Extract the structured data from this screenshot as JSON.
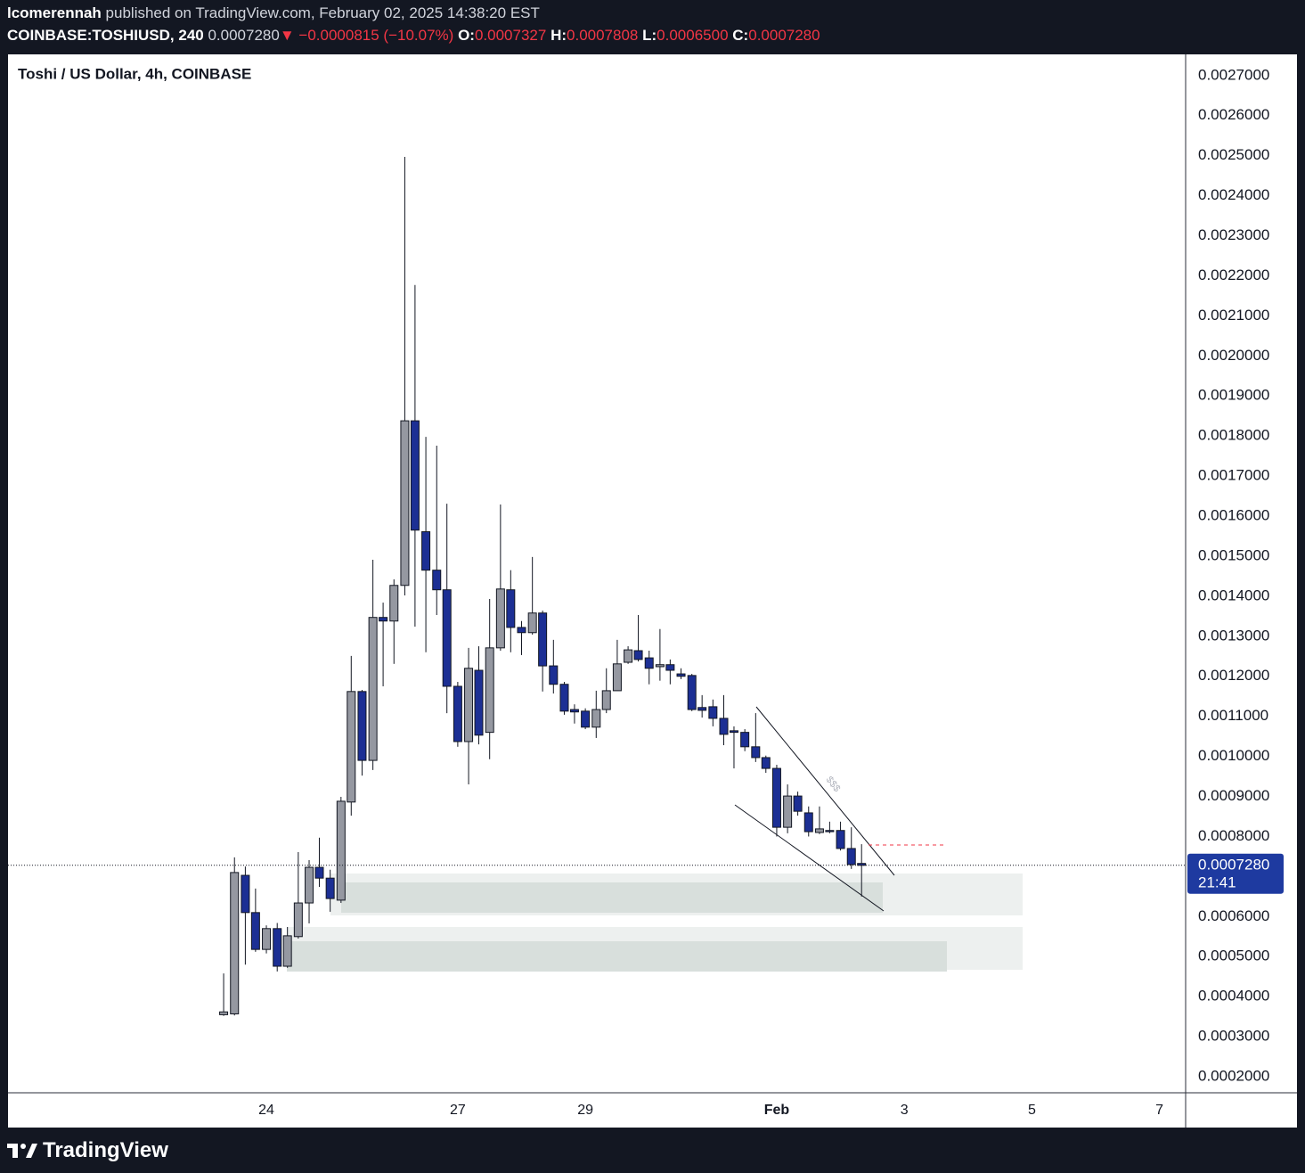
{
  "header": {
    "author": "lcomerennah",
    "published": "published on TradingView.com, February 02, 2025 14:38:20 EST",
    "symbol": "COINBASE:TOSHIUSD, 240",
    "last": "0.0007280",
    "arrow": "▼",
    "change": "−0.0000815 (−10.07%)",
    "o_label": "O:",
    "o": "0.0007327",
    "h_label": "H:",
    "h": "0.0007808",
    "l_label": "L:",
    "l": "0.0006500",
    "c_label": "C:",
    "c": "0.0007280"
  },
  "footer": {
    "brand": "TradingView"
  },
  "chart_data": {
    "type": "candlestick",
    "title": "Toshi / US Dollar, 4h, COINBASE",
    "x": [
      23.33,
      23.5,
      23.67,
      23.83,
      24,
      24.17,
      24.33,
      24.5,
      24.67,
      24.83,
      25,
      25.17,
      25.33,
      25.5,
      25.67,
      25.83,
      26,
      26.17,
      26.33,
      26.5,
      26.67,
      26.83,
      27,
      27.17,
      27.33,
      27.5,
      27.67,
      27.83,
      28,
      28.17,
      28.33,
      28.5,
      28.67,
      28.83,
      29,
      29.17,
      29.33,
      29.5,
      29.67,
      29.83,
      30,
      30.17,
      30.33,
      30.5,
      30.67,
      30.83,
      31,
      31.17,
      31.33,
      31.5,
      31.67,
      31.83,
      32,
      32.17,
      32.33,
      32.5,
      32.67,
      32.83,
      33,
      33.17,
      33.33
    ],
    "open": [
      0.000355,
      0.000357,
      0.000703,
      0.00061,
      0.000518,
      0.00057,
      0.000476,
      0.00055,
      0.000634,
      0.000723,
      0.000696,
      0.000641,
      0.000886,
      0.001162,
      0.00099,
      0.001347,
      0.001338,
      0.001427,
      0.001838,
      0.001561,
      0.001465,
      0.001416,
      0.001175,
      0.001037,
      0.001215,
      0.00106,
      0.001271,
      0.001416,
      0.001322,
      0.001309,
      0.001358,
      0.001226,
      0.00118,
      0.001117,
      0.001113,
      0.001073,
      0.001117,
      0.001164,
      0.001235,
      0.001264,
      0.001246,
      0.001224,
      0.001229,
      0.001206,
      0.001202,
      0.001122,
      0.001124,
      0.001095,
      0.001064,
      0.00106,
      0.001024,
      0.000997,
      0.00097,
      0.000823,
      0.000901,
      0.000859,
      0.00081,
      0.000815,
      0.000815,
      0.00077,
      0.0007327
    ],
    "high": [
      0.000458,
      0.000748,
      0.000725,
      0.00067,
      0.000578,
      0.000584,
      0.000574,
      0.000761,
      0.000741,
      0.000797,
      0.000717,
      0.000899,
      0.001251,
      0.001166,
      0.001491,
      0.001384,
      0.001442,
      0.002497,
      0.002177,
      0.001798,
      0.001776,
      0.001631,
      0.001186,
      0.001271,
      0.001275,
      0.001393,
      0.001629,
      0.001465,
      0.001338,
      0.001498,
      0.001364,
      0.001291,
      0.001186,
      0.00113,
      0.00112,
      0.001164,
      0.00122,
      0.001291,
      0.001275,
      0.001353,
      0.001264,
      0.001318,
      0.001242,
      0.00122,
      0.001206,
      0.001153,
      0.001142,
      0.001153,
      0.001075,
      0.001068,
      0.001108,
      0.001002,
      0.000979,
      0.00093,
      0.000912,
      0.000875,
      0.000875,
      0.000837,
      0.000837,
      0.000823,
      0.0007808
    ],
    "low": [
      0.000352,
      0.000353,
      0.00048,
      0.000512,
      0.000508,
      0.000463,
      0.000472,
      0.000545,
      0.000583,
      0.000674,
      0.000612,
      0.000634,
      0.000852,
      0.000952,
      0.000966,
      0.001175,
      0.001231,
      0.001402,
      0.001324,
      0.00126,
      0.001353,
      0.001108,
      0.001024,
      0.00093,
      0.00103,
      0.000993,
      0.001264,
      0.00126,
      0.001253,
      0.001304,
      0.001162,
      0.001157,
      0.001104,
      0.001082,
      0.001068,
      0.001046,
      0.001108,
      0.001164,
      0.001231,
      0.001237,
      0.00118,
      0.001189,
      0.00118,
      0.001193,
      0.001113,
      0.001097,
      0.001075,
      0.001028,
      0.00097,
      0.001013,
      0.000986,
      0.000959,
      0.0008,
      0.000808,
      0.000852,
      0.0008,
      0.000806,
      0.000808,
      0.000765,
      0.000719,
      0.00065
    ],
    "close": [
      0.000362,
      0.00071,
      0.00061,
      0.000518,
      0.00057,
      0.000476,
      0.000552,
      0.000634,
      0.000723,
      0.000696,
      0.000645,
      0.000888,
      0.001162,
      0.00099,
      0.001347,
      0.001338,
      0.001427,
      0.001838,
      0.001565,
      0.001465,
      0.001416,
      0.001175,
      0.001037,
      0.00122,
      0.001053,
      0.001271,
      0.001418,
      0.001322,
      0.001309,
      0.001358,
      0.001226,
      0.00118,
      0.001113,
      0.001111,
      0.001073,
      0.001117,
      0.001164,
      0.001231,
      0.001266,
      0.001242,
      0.00122,
      0.001229,
      0.001215,
      0.0012,
      0.001117,
      0.001115,
      0.001095,
      0.001055,
      0.00106,
      0.001024,
      0.000997,
      0.00097,
      0.000823,
      0.000901,
      0.000863,
      0.000812,
      0.000819,
      0.000812,
      0.00077,
      0.00073,
      0.000728
    ],
    "up_color": "#9598a1",
    "down_color": "#1c2f94",
    "xlim": [
      19.95,
      38.41
    ],
    "xticks": [
      24,
      27,
      29,
      {
        "value": 32,
        "label": "Feb"
      },
      {
        "value": 34,
        "label": "3"
      },
      {
        "value": 36,
        "label": "5"
      },
      {
        "value": 38,
        "label": "7"
      }
    ],
    "ylim": [
      0.00016,
      0.002753
    ],
    "yticks": [
      {
        "value": 0.0027,
        "label": "0.0027000"
      },
      {
        "value": 0.0026,
        "label": "0.0026000"
      },
      {
        "value": 0.0025,
        "label": "0.0025000"
      },
      {
        "value": 0.0024,
        "label": "0.0024000"
      },
      {
        "value": 0.0023,
        "label": "0.0023000"
      },
      {
        "value": 0.0022,
        "label": "0.0022000"
      },
      {
        "value": 0.0021,
        "label": "0.0021000"
      },
      {
        "value": 0.002,
        "label": "0.0020000"
      },
      {
        "value": 0.0019,
        "label": "0.0019000"
      },
      {
        "value": 0.0018,
        "label": "0.0018000"
      },
      {
        "value": 0.0017,
        "label": "0.0017000"
      },
      {
        "value": 0.0016,
        "label": "0.0016000"
      },
      {
        "value": 0.0015,
        "label": "0.0015000"
      },
      {
        "value": 0.0014,
        "label": "0.0014000"
      },
      {
        "value": 0.0013,
        "label": "0.0013000"
      },
      {
        "value": 0.0012,
        "label": "0.0012000"
      },
      {
        "value": 0.0011,
        "label": "0.0011000"
      },
      {
        "value": 0.001,
        "label": "0.0010000"
      },
      {
        "value": 0.0009,
        "label": "0.0009000"
      },
      {
        "value": 0.0008,
        "label": "0.0008000"
      },
      {
        "value": 0.0006,
        "label": "0.0006000"
      },
      {
        "value": 0.0005,
        "label": "0.0005000"
      },
      {
        "value": 0.0004,
        "label": "0.0004000"
      },
      {
        "value": 0.0003,
        "label": "0.0003000"
      },
      {
        "value": 0.0002,
        "label": "0.0002000"
      }
    ],
    "grid": false,
    "last_price_label": "0.0007280",
    "countdown": "21:41",
    "annotation": "$$$"
  }
}
